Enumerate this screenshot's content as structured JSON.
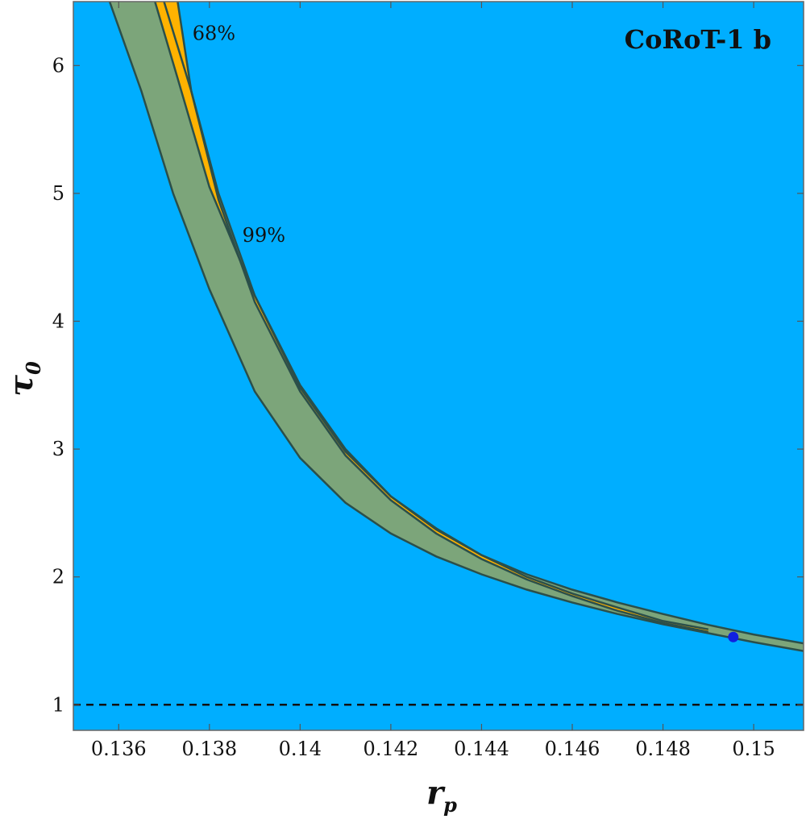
{
  "chart_data": {
    "type": "contour",
    "title": "CoRoT-1 b",
    "xlabel": "r",
    "xlabel_subscript": "p",
    "ylabel": "τ",
    "ylabel_subscript": "0",
    "xlim": [
      0.135,
      0.1511
    ],
    "ylim": [
      0.8,
      6.5
    ],
    "xticks": [
      0.136,
      0.138,
      0.14,
      0.142,
      0.144,
      0.146,
      0.148,
      0.15
    ],
    "xtick_labels": [
      "0.136",
      "0.138",
      "0.14",
      "0.142",
      "0.144",
      "0.146",
      "0.148",
      "0.15"
    ],
    "yticks": [
      1,
      2,
      3,
      4,
      5,
      6
    ],
    "ytick_labels": [
      "1",
      "2",
      "3",
      "4",
      "5",
      "6"
    ],
    "contour_labels": [
      {
        "text": "68%",
        "x": 0.1381,
        "y": 6.2
      },
      {
        "text": "99%",
        "x": 0.1392,
        "y": 4.62
      }
    ],
    "bands": {
      "band_99_outer": [
        [
          0.1358,
          6.5
        ],
        [
          0.1365,
          5.8
        ],
        [
          0.1372,
          5.0
        ],
        [
          0.138,
          4.25
        ],
        [
          0.139,
          3.45
        ],
        [
          0.14,
          2.93
        ],
        [
          0.141,
          2.58
        ],
        [
          0.142,
          2.34
        ],
        [
          0.143,
          2.16
        ],
        [
          0.144,
          2.02
        ],
        [
          0.145,
          1.9
        ],
        [
          0.146,
          1.8
        ],
        [
          0.147,
          1.71
        ],
        [
          0.148,
          1.63
        ],
        [
          0.149,
          1.56
        ],
        [
          0.15,
          1.49
        ],
        [
          0.1511,
          1.42
        ]
      ],
      "band_68_outer": [
        [
          0.1368,
          6.5
        ],
        [
          0.1373,
          5.9
        ],
        [
          0.138,
          5.05
        ],
        [
          0.139,
          4.2
        ],
        [
          0.14,
          3.5
        ],
        [
          0.141,
          3.0
        ],
        [
          0.142,
          2.63
        ],
        [
          0.143,
          2.38
        ],
        [
          0.144,
          2.17
        ],
        [
          0.145,
          2.0
        ],
        [
          0.146,
          1.87
        ],
        [
          0.147,
          1.76
        ],
        [
          0.148,
          1.655
        ],
        [
          0.149,
          1.59
        ]
      ],
      "band_68_inner": [
        [
          0.149,
          1.57
        ],
        [
          0.148,
          1.64
        ],
        [
          0.147,
          1.735
        ],
        [
          0.146,
          1.85
        ],
        [
          0.145,
          1.98
        ],
        [
          0.144,
          2.14
        ],
        [
          0.143,
          2.34
        ],
        [
          0.142,
          2.6
        ],
        [
          0.141,
          2.95
        ],
        [
          0.14,
          3.45
        ],
        [
          0.139,
          4.15
        ],
        [
          0.1382,
          4.95
        ],
        [
          0.1376,
          5.8
        ],
        [
          0.1373,
          6.5
        ]
      ],
      "band_99_inner": [
        [
          0.1511,
          1.48
        ],
        [
          0.15,
          1.55
        ],
        [
          0.149,
          1.625
        ],
        [
          0.148,
          1.71
        ],
        [
          0.147,
          1.8
        ],
        [
          0.146,
          1.9
        ],
        [
          0.145,
          2.02
        ],
        [
          0.144,
          2.17
        ],
        [
          0.143,
          2.37
        ],
        [
          0.142,
          2.63
        ],
        [
          0.141,
          2.98
        ],
        [
          0.14,
          3.48
        ],
        [
          0.139,
          4.2
        ],
        [
          0.1382,
          5.0
        ],
        [
          0.1376,
          5.8
        ],
        [
          0.137,
          6.5
        ]
      ]
    },
    "reference_line": {
      "y": 1,
      "style": "dashed"
    },
    "best_fit_point": {
      "x": 0.14955,
      "y": 1.53
    },
    "colors": {
      "background": "#00aeff",
      "band_99": "#7ca57a",
      "band_68": "#ffb200",
      "contour_line": "#2b4f4a",
      "point": "#1020e0",
      "dashed_line": "#111111"
    }
  }
}
